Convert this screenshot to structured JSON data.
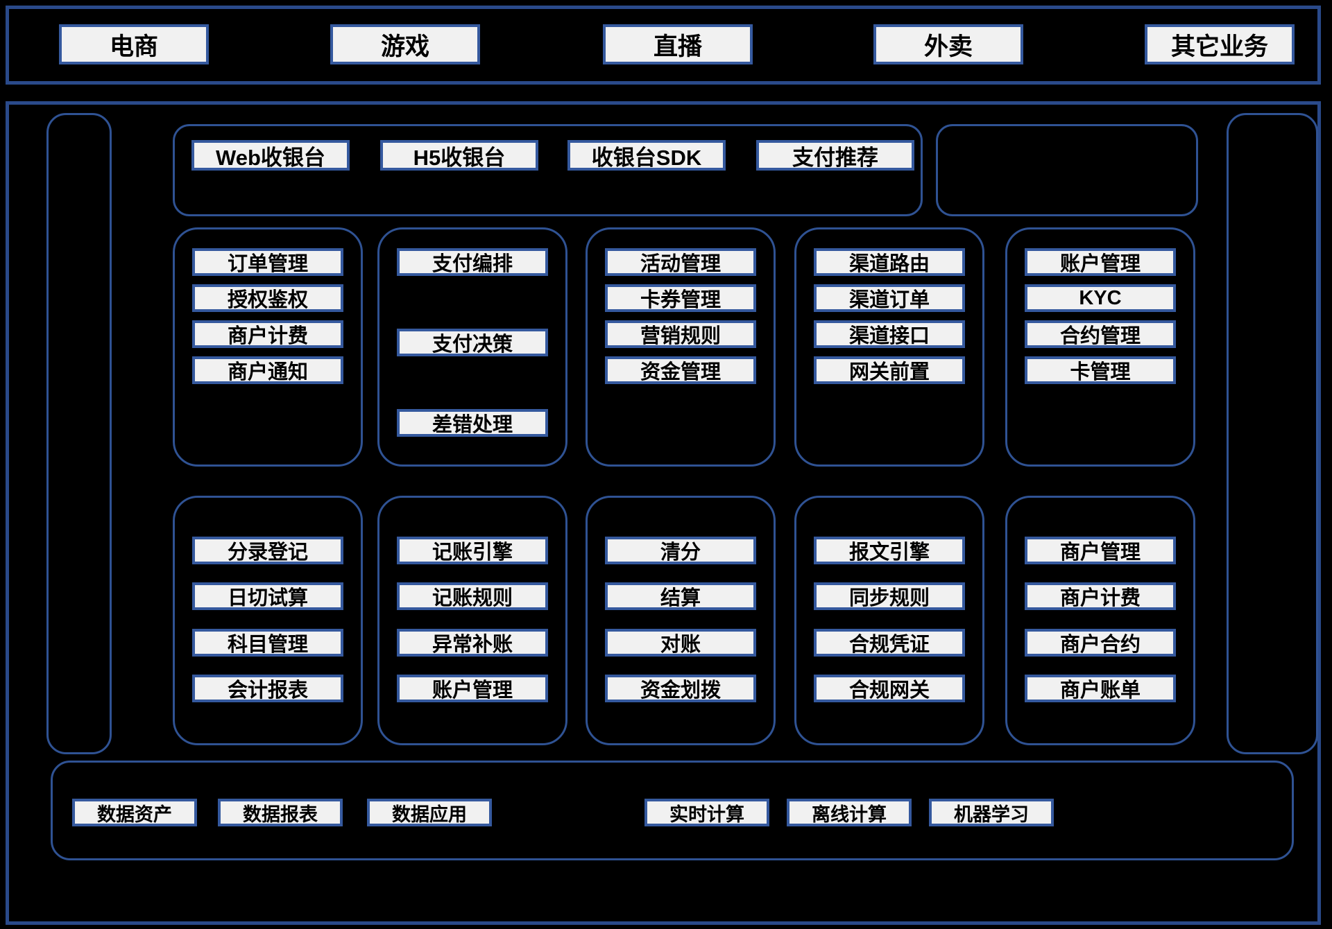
{
  "colors": {
    "background": "#000000",
    "outer_border": "#2a4a8a",
    "container_border": "#2f5293",
    "box_border": "#35599e",
    "box_background": "#f1f1f1",
    "box_text": "#000000"
  },
  "top_banner": {
    "items": [
      "电商",
      "游戏",
      "直播",
      "外卖",
      "其它业务"
    ]
  },
  "checkout_bar": {
    "items": [
      "Web收银台",
      "H5收银台",
      "收银台SDK",
      "支付推荐"
    ]
  },
  "row1_columns": [
    {
      "items": [
        "订单管理",
        "授权鉴权",
        "商户计费",
        "商户通知"
      ]
    },
    {
      "items": [
        "支付编排",
        "支付决策",
        "差错处理"
      ]
    },
    {
      "items": [
        "活动管理",
        "卡券管理",
        "营销规则",
        "资金管理"
      ]
    },
    {
      "items": [
        "渠道路由",
        "渠道订单",
        "渠道接口",
        "网关前置"
      ]
    },
    {
      "items": [
        "账户管理",
        "KYC",
        "合约管理",
        "卡管理"
      ]
    }
  ],
  "row2_columns": [
    {
      "items": [
        "分录登记",
        "日切试算",
        "科目管理",
        "会计报表"
      ]
    },
    {
      "items": [
        "记账引擎",
        "记账规则",
        "异常补账",
        "账户管理"
      ]
    },
    {
      "items": [
        "清分",
        "结算",
        "对账",
        "资金划拨"
      ]
    },
    {
      "items": [
        "报文引擎",
        "同步规则",
        "合规凭证",
        "合规网关"
      ]
    },
    {
      "items": [
        "商户管理",
        "商户计费",
        "商户合约",
        "商户账单"
      ]
    }
  ],
  "data_bar": {
    "left_items": [
      "数据资产",
      "数据报表",
      "数据应用"
    ],
    "right_items": [
      "实时计算",
      "离线计算",
      "机器学习"
    ]
  }
}
